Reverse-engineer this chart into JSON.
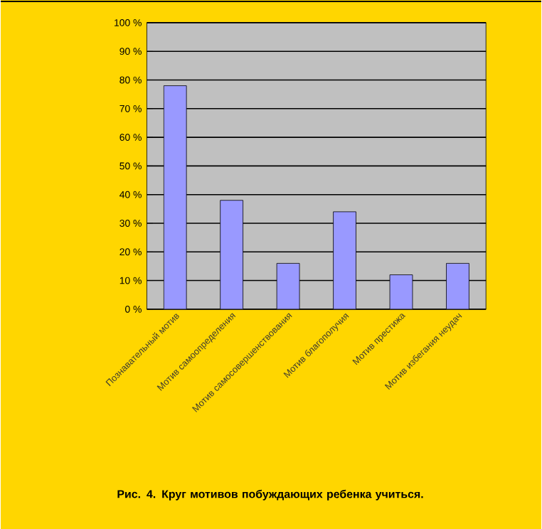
{
  "chart_data": {
    "type": "bar",
    "title": "Рис. 4. Круг мотивов побуждающих ребенка учиться.",
    "categories": [
      "Познавательный мотив",
      "Мотив самоопределения",
      "Мотив самосовершенствования",
      "Мотив благополучия",
      "Мотив престижа",
      "Мотив избегания неудач"
    ],
    "values": [
      78,
      38,
      16,
      34,
      12,
      16
    ],
    "color": "#9999ff",
    "ylim": [
      0,
      100
    ],
    "yticks": [
      {
        "value": 0,
        "label": "0 %"
      },
      {
        "value": 10,
        "label": "10 %"
      },
      {
        "value": 20,
        "label": "20 %"
      },
      {
        "value": 30,
        "label": "30 %"
      },
      {
        "value": 40,
        "label": "40 %"
      },
      {
        "value": 50,
        "label": "50 %"
      },
      {
        "value": 60,
        "label": "60 %"
      },
      {
        "value": 70,
        "label": "70 %"
      },
      {
        "value": 80,
        "label": "80 %"
      },
      {
        "value": 90,
        "label": "90 %"
      },
      {
        "value": 100,
        "label": "100 %"
      }
    ],
    "grid": "y"
  }
}
